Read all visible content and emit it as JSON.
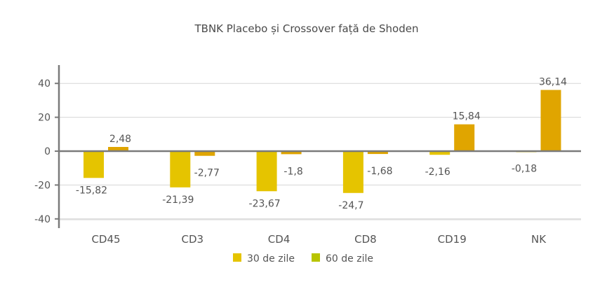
{
  "chart_data": {
    "type": "bar",
    "title": "TBNK Placebo și Crossover față de Shoden",
    "categories": [
      "CD45",
      "CD3",
      "CD4",
      "CD8",
      "CD19",
      "NK"
    ],
    "series": [
      {
        "name": "30 de zile",
        "color": "#E5C400",
        "values": [
          -15.82,
          -21.39,
          -23.67,
          -24.7,
          -2.16,
          -0.18
        ],
        "labels": [
          "-15,82",
          "-21,39",
          "-23,67",
          "-24,7",
          "-2,16",
          "-0,18"
        ]
      },
      {
        "name": "60 de zile",
        "color": "#E0A500",
        "values": [
          2.48,
          -2.77,
          -1.8,
          -1.68,
          15.84,
          36.14
        ],
        "labels": [
          "2,48",
          "-2,77",
          "-1,8",
          "-1,68",
          "15,84",
          "36,14"
        ]
      }
    ],
    "legend_colors": [
      "#E5C400",
      "#B8C400"
    ],
    "y_ticks": [
      40,
      20,
      0,
      -20,
      -40
    ],
    "ylim": [
      -40,
      40
    ],
    "grid": true,
    "legend": "bottom"
  }
}
